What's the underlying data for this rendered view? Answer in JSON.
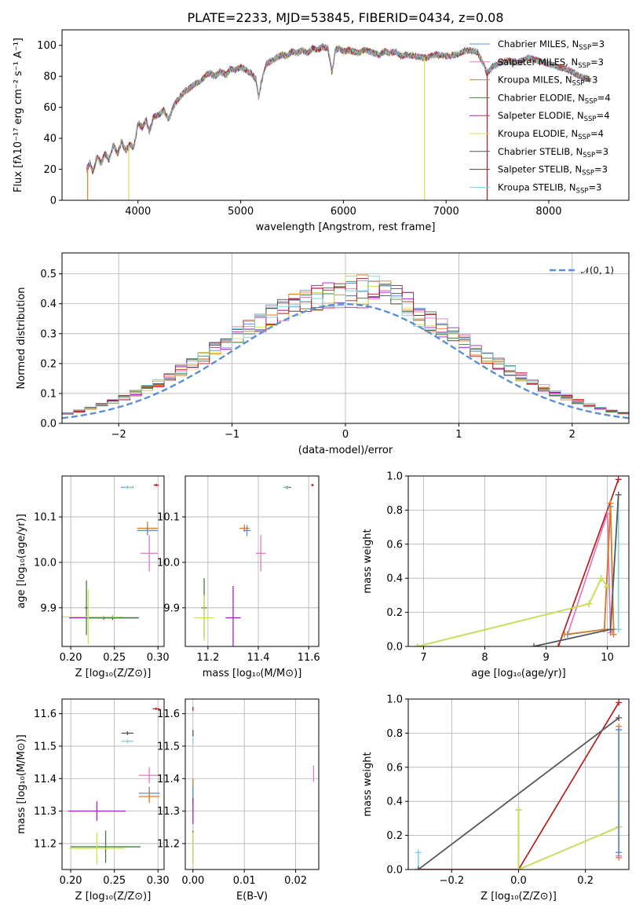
{
  "figure_title": "PLATE=2233, MJD=53845, FIBERID=0434, z=0.08",
  "colors": {
    "Chabrier MILES": "#5b8fd6",
    "Salpeter MILES": "#e377c2",
    "Kroupa MILES": "#e07b20",
    "Chabrier ELODIE": "#3f7f3f",
    "Salpeter ELODIE": "#a020c0",
    "Kroupa ELODIE": "#d4e157",
    "Chabrier STELIB": "#555555",
    "Salpeter STELIB": "#b71c1c",
    "Kroupa STELIB": "#80d0e0"
  },
  "chart_data": [
    {
      "id": "spectrum",
      "type": "line",
      "title": "PLATE=2233, MJD=53845, FIBERID=0434, z=0.08",
      "xlabel": "wavelength [Angstrom, rest frame]",
      "ylabel": "Flux [fλ10⁻¹⁷ erg cm⁻² s⁻¹ A⁻¹]",
      "xlim": [
        3260,
        8780
      ],
      "ylim": [
        0,
        110
      ],
      "xticks": [
        4000,
        5000,
        6000,
        7000,
        8000
      ],
      "yticks": [
        0,
        20,
        40,
        60,
        80,
        100
      ],
      "legend_position": "top-right",
      "legend": [
        {
          "label": "Chabrier MILES, N",
          "sub": "SSP",
          "suffix": "=3"
        },
        {
          "label": "Salpeter MILES, N",
          "sub": "SSP",
          "suffix": "=3"
        },
        {
          "label": "Kroupa MILES, N",
          "sub": "SSP",
          "suffix": "=3"
        },
        {
          "label": "Chabrier ELODIE, N",
          "sub": "SSP",
          "suffix": "=4"
        },
        {
          "label": "Salpeter ELODIE, N",
          "sub": "SSP",
          "suffix": "=4"
        },
        {
          "label": "Kroupa ELODIE, N",
          "sub": "SSP",
          "suffix": "=4"
        },
        {
          "label": "Chabrier STELIB, N",
          "sub": "SSP",
          "suffix": "=3"
        },
        {
          "label": "Salpeter STELIB, N",
          "sub": "SSP",
          "suffix": "=3"
        },
        {
          "label": "Kroupa STELIB, N",
          "sub": "SSP",
          "suffix": "=3"
        }
      ],
      "curve": [
        [
          3500,
          20
        ],
        [
          3530,
          24
        ],
        [
          3560,
          18
        ],
        [
          3600,
          28
        ],
        [
          3640,
          24
        ],
        [
          3680,
          30
        ],
        [
          3720,
          26
        ],
        [
          3760,
          36
        ],
        [
          3800,
          30
        ],
        [
          3840,
          38
        ],
        [
          3880,
          32
        ],
        [
          3920,
          36
        ],
        [
          3960,
          34
        ],
        [
          4000,
          50
        ],
        [
          4040,
          47
        ],
        [
          4080,
          52
        ],
        [
          4110,
          44
        ],
        [
          4150,
          54
        ],
        [
          4200,
          55
        ],
        [
          4250,
          58
        ],
        [
          4300,
          52
        ],
        [
          4340,
          60
        ],
        [
          4400,
          66
        ],
        [
          4450,
          70
        ],
        [
          4500,
          72
        ],
        [
          4550,
          75
        ],
        [
          4600,
          76
        ],
        [
          4650,
          80
        ],
        [
          4700,
          82
        ],
        [
          4750,
          80
        ],
        [
          4800,
          83
        ],
        [
          4860,
          81
        ],
        [
          4900,
          85
        ],
        [
          4950,
          84
        ],
        [
          5000,
          86
        ],
        [
          5050,
          84
        ],
        [
          5100,
          82
        ],
        [
          5150,
          78
        ],
        [
          5175,
          66
        ],
        [
          5200,
          76
        ],
        [
          5250,
          88
        ],
        [
          5300,
          90
        ],
        [
          5350,
          92
        ],
        [
          5400,
          94
        ],
        [
          5450,
          93
        ],
        [
          5500,
          96
        ],
        [
          5550,
          95
        ],
        [
          5600,
          97
        ],
        [
          5650,
          95
        ],
        [
          5700,
          98
        ],
        [
          5750,
          97
        ],
        [
          5800,
          99
        ],
        [
          5850,
          98
        ],
        [
          5890,
          82
        ],
        [
          5920,
          97
        ],
        [
          5960,
          98
        ],
        [
          6000,
          96
        ],
        [
          6050,
          97
        ],
        [
          6100,
          96
        ],
        [
          6150,
          95
        ],
        [
          6200,
          97
        ],
        [
          6250,
          96
        ],
        [
          6300,
          95
        ],
        [
          6350,
          94
        ],
        [
          6400,
          96
        ],
        [
          6450,
          95
        ],
        [
          6500,
          96
        ],
        [
          6563,
          93
        ],
        [
          6600,
          94
        ],
        [
          6700,
          93
        ],
        [
          6800,
          92
        ],
        [
          6900,
          94
        ],
        [
          7000,
          93
        ],
        [
          7100,
          94
        ],
        [
          7200,
          97
        ],
        [
          7300,
          96
        ],
        [
          7350,
          90
        ],
        [
          7400,
          82
        ],
        [
          7450,
          86
        ],
        [
          7500,
          88
        ],
        [
          7600,
          90
        ],
        [
          7700,
          89
        ],
        [
          7800,
          92
        ],
        [
          7900,
          90
        ],
        [
          8000,
          88
        ],
        [
          8100,
          86
        ],
        [
          8200,
          84
        ],
        [
          8300,
          80
        ],
        [
          8400,
          78
        ]
      ],
      "dropouts": [
        {
          "x": 3510,
          "color": "Kroupa MILES"
        },
        {
          "x": 3910,
          "color": "Kroupa ELODIE"
        },
        {
          "x": 6790,
          "color": "Kroupa ELODIE"
        },
        {
          "x": 7400,
          "color": "Salpeter STELIB"
        }
      ]
    },
    {
      "id": "residuals",
      "type": "histogram",
      "xlabel": "(data-model)/error",
      "ylabel": "Normed distribution",
      "xlim": [
        -2.5,
        2.5
      ],
      "ylim": [
        0,
        0.57
      ],
      "xticks": [
        -2,
        -1,
        0,
        1,
        2
      ],
      "yticks": [
        0.0,
        0.1,
        0.2,
        0.3,
        0.4,
        0.5
      ],
      "legend_position": "top-right",
      "legend_label": "𝒩(0, 1)",
      "bin_width": 0.1,
      "bin_start": -2.5
    },
    {
      "id": "age-Z",
      "type": "scatter",
      "xlabel": "Z [log₁₀(Z/Z⊙)]",
      "ylabel": "age  [log₁₀(age/yr)]",
      "xlim": [
        0.19,
        0.307
      ],
      "ylim": [
        9.815,
        10.19
      ],
      "xticks": [
        0.2,
        0.25,
        0.3
      ],
      "yticks": [
        9.9,
        10.0,
        10.1
      ],
      "points": [
        {
          "x": 0.265,
          "y": 10.165,
          "xerr": 0.007,
          "yerr": 0.003,
          "c": "Chabrier STELIB"
        },
        {
          "x": 0.265,
          "y": 10.165,
          "xerr": 0.006,
          "yerr": 0.003,
          "c": "Kroupa STELIB"
        },
        {
          "x": 0.298,
          "y": 10.17,
          "xerr": 0.003,
          "yerr": 0.003,
          "c": "Salpeter STELIB"
        },
        {
          "x": 0.288,
          "y": 10.075,
          "xerr": 0.012,
          "yerr": 0.015,
          "c": "Kroupa MILES"
        },
        {
          "x": 0.288,
          "y": 10.07,
          "xerr": 0.012,
          "yerr": 0.01,
          "c": "Chabrier MILES"
        },
        {
          "x": 0.29,
          "y": 10.02,
          "xerr": 0.01,
          "yerr": 0.04,
          "c": "Salpeter MILES"
        },
        {
          "x": 0.238,
          "y": 9.878,
          "xerr": 0.04,
          "yerr": 0.004,
          "c": "Salpeter ELODIE"
        },
        {
          "x": 0.248,
          "y": 9.878,
          "xerr": 0.03,
          "yerr": 0.005,
          "c": "Chabrier ELODIE"
        },
        {
          "x": 0.218,
          "y": 9.9,
          "xerr": 0.002,
          "yerr": 0.06,
          "c": "Chabrier ELODIE"
        },
        {
          "x": 0.22,
          "y": 9.88,
          "xerr": 0.04,
          "yerr": 0.06,
          "c": "Kroupa ELODIE"
        }
      ]
    },
    {
      "id": "age-mass",
      "type": "scatter",
      "xlabel": "mass [log₁₀(M/M⊙)]",
      "ylabel": "",
      "xlim": [
        11.11,
        11.64
      ],
      "ylim": [
        9.815,
        10.19
      ],
      "xticks": [
        11.2,
        11.4,
        11.6
      ],
      "yticks": [
        9.9,
        10.0,
        10.1
      ],
      "points": [
        {
          "x": 11.515,
          "y": 10.165,
          "xerr": 0.015,
          "yerr": 0.003,
          "c": "Chabrier STELIB"
        },
        {
          "x": 11.51,
          "y": 10.165,
          "xerr": 0.012,
          "yerr": 0.003,
          "c": "Kroupa STELIB"
        },
        {
          "x": 11.615,
          "y": 10.17,
          "xerr": 0.005,
          "yerr": 0.003,
          "c": "Salpeter STELIB"
        },
        {
          "x": 11.345,
          "y": 10.075,
          "xerr": 0.02,
          "yerr": 0.008,
          "c": "Kroupa MILES"
        },
        {
          "x": 11.355,
          "y": 10.07,
          "xerr": 0.015,
          "yerr": 0.012,
          "c": "Chabrier MILES"
        },
        {
          "x": 11.41,
          "y": 10.02,
          "xerr": 0.02,
          "yerr": 0.04,
          "c": "Salpeter MILES"
        },
        {
          "x": 11.3,
          "y": 9.878,
          "xerr": 0.03,
          "yerr": 0.07,
          "c": "Salpeter ELODIE"
        },
        {
          "x": 11.185,
          "y": 9.9,
          "xerr": 0.01,
          "yerr": 0.065,
          "c": "Chabrier ELODIE"
        },
        {
          "x": 11.185,
          "y": 9.878,
          "xerr": 0.04,
          "yerr": 0.05,
          "c": "Kroupa ELODIE"
        }
      ]
    },
    {
      "id": "weight-age",
      "type": "line",
      "xlabel": "age  [log₁₀(age/yr)]",
      "ylabel": "mass weight",
      "xlim": [
        6.75,
        10.35
      ],
      "ylim": [
        0,
        1
      ],
      "xticks": [
        7,
        8,
        9,
        10
      ],
      "yticks": [
        0.0,
        0.2,
        0.4,
        0.6,
        0.8,
        1.0
      ],
      "series": [
        {
          "c": "Salpeter STELIB",
          "x": [
            9.2,
            10.18
          ],
          "y": [
            0.0,
            0.98
          ]
        },
        {
          "c": "Salpeter MILES",
          "x": [
            9.35,
            10.0,
            10.05,
            10.1
          ],
          "y": [
            0.07,
            0.78,
            0.08,
            0.1
          ]
        },
        {
          "c": "Chabrier MILES",
          "x": [
            9.35,
            9.95,
            10.05,
            10.1
          ],
          "y": [
            0.07,
            0.1,
            0.82,
            0.1
          ]
        },
        {
          "c": "Kroupa MILES",
          "x": [
            9.3,
            9.95,
            10.05,
            10.1,
            10.1
          ],
          "y": [
            0.07,
            0.1,
            0.84,
            0.1,
            0.07
          ]
        },
        {
          "c": "Chabrier ELODIE",
          "x": [
            6.9,
            9.7,
            9.9,
            10.0
          ],
          "y": [
            0.0,
            0.25,
            0.4,
            0.35
          ]
        },
        {
          "c": "Kroupa ELODIE",
          "x": [
            6.9,
            9.7,
            9.9,
            10.0
          ],
          "y": [
            0.0,
            0.25,
            0.4,
            0.35
          ]
        },
        {
          "c": "Kroupa STELIB",
          "x": [
            8.8,
            10.05,
            10.18,
            10.18
          ],
          "y": [
            0.0,
            0.1,
            0.89,
            0.1
          ]
        },
        {
          "c": "Chabrier STELIB",
          "x": [
            8.8,
            10.05,
            10.18
          ],
          "y": [
            0.0,
            0.1,
            0.89
          ]
        }
      ]
    },
    {
      "id": "mass-Z",
      "type": "scatter",
      "xlabel": "Z [log₁₀(Z/Z⊙)]",
      "ylabel": "mass [log₁₀(M/M⊙)]",
      "xlim": [
        0.19,
        0.307
      ],
      "ylim": [
        11.12,
        11.645
      ],
      "xticks": [
        0.2,
        0.25,
        0.3
      ],
      "yticks": [
        11.2,
        11.3,
        11.4,
        11.5,
        11.6
      ],
      "points": [
        {
          "x": 0.298,
          "y": 11.615,
          "xerr": 0.004,
          "yerr": 0.004,
          "c": "Salpeter STELIB"
        },
        {
          "x": 0.265,
          "y": 11.54,
          "xerr": 0.007,
          "yerr": 0.006,
          "c": "Chabrier STELIB"
        },
        {
          "x": 0.265,
          "y": 11.515,
          "xerr": 0.007,
          "yerr": 0.006,
          "c": "Kroupa STELIB"
        },
        {
          "x": 0.29,
          "y": 11.41,
          "xerr": 0.012,
          "yerr": 0.025,
          "c": "Salpeter MILES"
        },
        {
          "x": 0.29,
          "y": 11.355,
          "xerr": 0.012,
          "yerr": 0.02,
          "c": "Chabrier MILES"
        },
        {
          "x": 0.29,
          "y": 11.345,
          "xerr": 0.012,
          "yerr": 0.02,
          "c": "Kroupa MILES"
        },
        {
          "x": 0.23,
          "y": 11.3,
          "xerr": 0.033,
          "yerr": 0.03,
          "c": "Salpeter ELODIE"
        },
        {
          "x": 0.24,
          "y": 11.19,
          "xerr": 0.04,
          "yerr": 0.05,
          "c": "Chabrier ELODIE"
        },
        {
          "x": 0.23,
          "y": 11.185,
          "xerr": 0.032,
          "yerr": 0.05,
          "c": "Kroupa ELODIE"
        }
      ]
    },
    {
      "id": "mass-EBV",
      "type": "scatter",
      "xlabel": "E(B-V)",
      "ylabel": "",
      "xlim": [
        -0.0015,
        0.0245
      ],
      "ylim": [
        11.12,
        11.645
      ],
      "xticks": [
        0.0,
        0.01,
        0.02
      ],
      "yticks": [
        11.2,
        11.3,
        11.4,
        11.5,
        11.6
      ],
      "points": [
        {
          "x": 0.0,
          "y": 11.615,
          "xerr": 0.0,
          "yerr": 0.006,
          "c": "Salpeter STELIB"
        },
        {
          "x": 0.0,
          "y": 11.54,
          "xerr": 0.0,
          "yerr": 0.01,
          "c": "Chabrier STELIB"
        },
        {
          "x": 0.0,
          "y": 11.515,
          "xerr": 0.0,
          "yerr": 0.01,
          "c": "Kroupa STELIB"
        },
        {
          "x": 0.0,
          "y": 11.36,
          "xerr": 0.0,
          "yerr": 0.04,
          "c": "Kroupa MILES"
        },
        {
          "x": 0.0,
          "y": 11.35,
          "xerr": 0.0,
          "yerr": 0.03,
          "c": "Chabrier MILES"
        },
        {
          "x": 0.0,
          "y": 11.3,
          "xerr": 0.0,
          "yerr": 0.04,
          "c": "Salpeter ELODIE"
        },
        {
          "x": 0.0,
          "y": 11.19,
          "xerr": 0.0,
          "yerr": 0.05,
          "c": "Chabrier ELODIE"
        },
        {
          "x": 0.0,
          "y": 11.185,
          "xerr": 0.0,
          "yerr": 0.05,
          "c": "Kroupa ELODIE"
        },
        {
          "x": 0.0235,
          "y": 11.415,
          "xerr": 0.0,
          "yerr": 0.025,
          "c": "Salpeter MILES"
        }
      ]
    },
    {
      "id": "weight-Z",
      "type": "line",
      "xlabel": "Z [log₁₀(Z/Z⊙)]",
      "ylabel": "mass weight",
      "xlim": [
        -0.33,
        0.33
      ],
      "ylim": [
        0,
        1
      ],
      "xticks": [
        -0.2,
        0.0,
        0.2
      ],
      "yticks": [
        0.0,
        0.2,
        0.4,
        0.6,
        0.8,
        1.0
      ],
      "series": [
        {
          "c": "Salpeter STELIB",
          "x": [
            -0.3,
            0.0,
            0.3
          ],
          "y": [
            0.0,
            0.0,
            0.98
          ]
        },
        {
          "c": "Kroupa STELIB",
          "x": [
            -0.3,
            -0.3,
            0.3
          ],
          "y": [
            0.1,
            0.0,
            0.89
          ]
        },
        {
          "c": "Chabrier STELIB",
          "x": [
            -0.3,
            0.3
          ],
          "y": [
            0.0,
            0.89
          ]
        },
        {
          "c": "Chabrier ELODIE",
          "x": [
            0.0,
            0.0,
            0.3
          ],
          "y": [
            0.35,
            0.0,
            0.25
          ]
        },
        {
          "c": "Kroupa ELODIE",
          "x": [
            0.0,
            0.0,
            0.3,
            0.3
          ],
          "y": [
            0.35,
            0.0,
            0.25,
            0.4
          ]
        },
        {
          "c": "Kroupa MILES",
          "x": [
            0.3,
            0.3
          ],
          "y": [
            0.07,
            0.84
          ]
        },
        {
          "c": "Salpeter MILES",
          "x": [
            0.3,
            0.3
          ],
          "y": [
            0.08,
            0.82
          ]
        },
        {
          "c": "Chabrier MILES",
          "x": [
            0.3,
            0.3
          ],
          "y": [
            0.1,
            0.82
          ]
        }
      ]
    }
  ]
}
